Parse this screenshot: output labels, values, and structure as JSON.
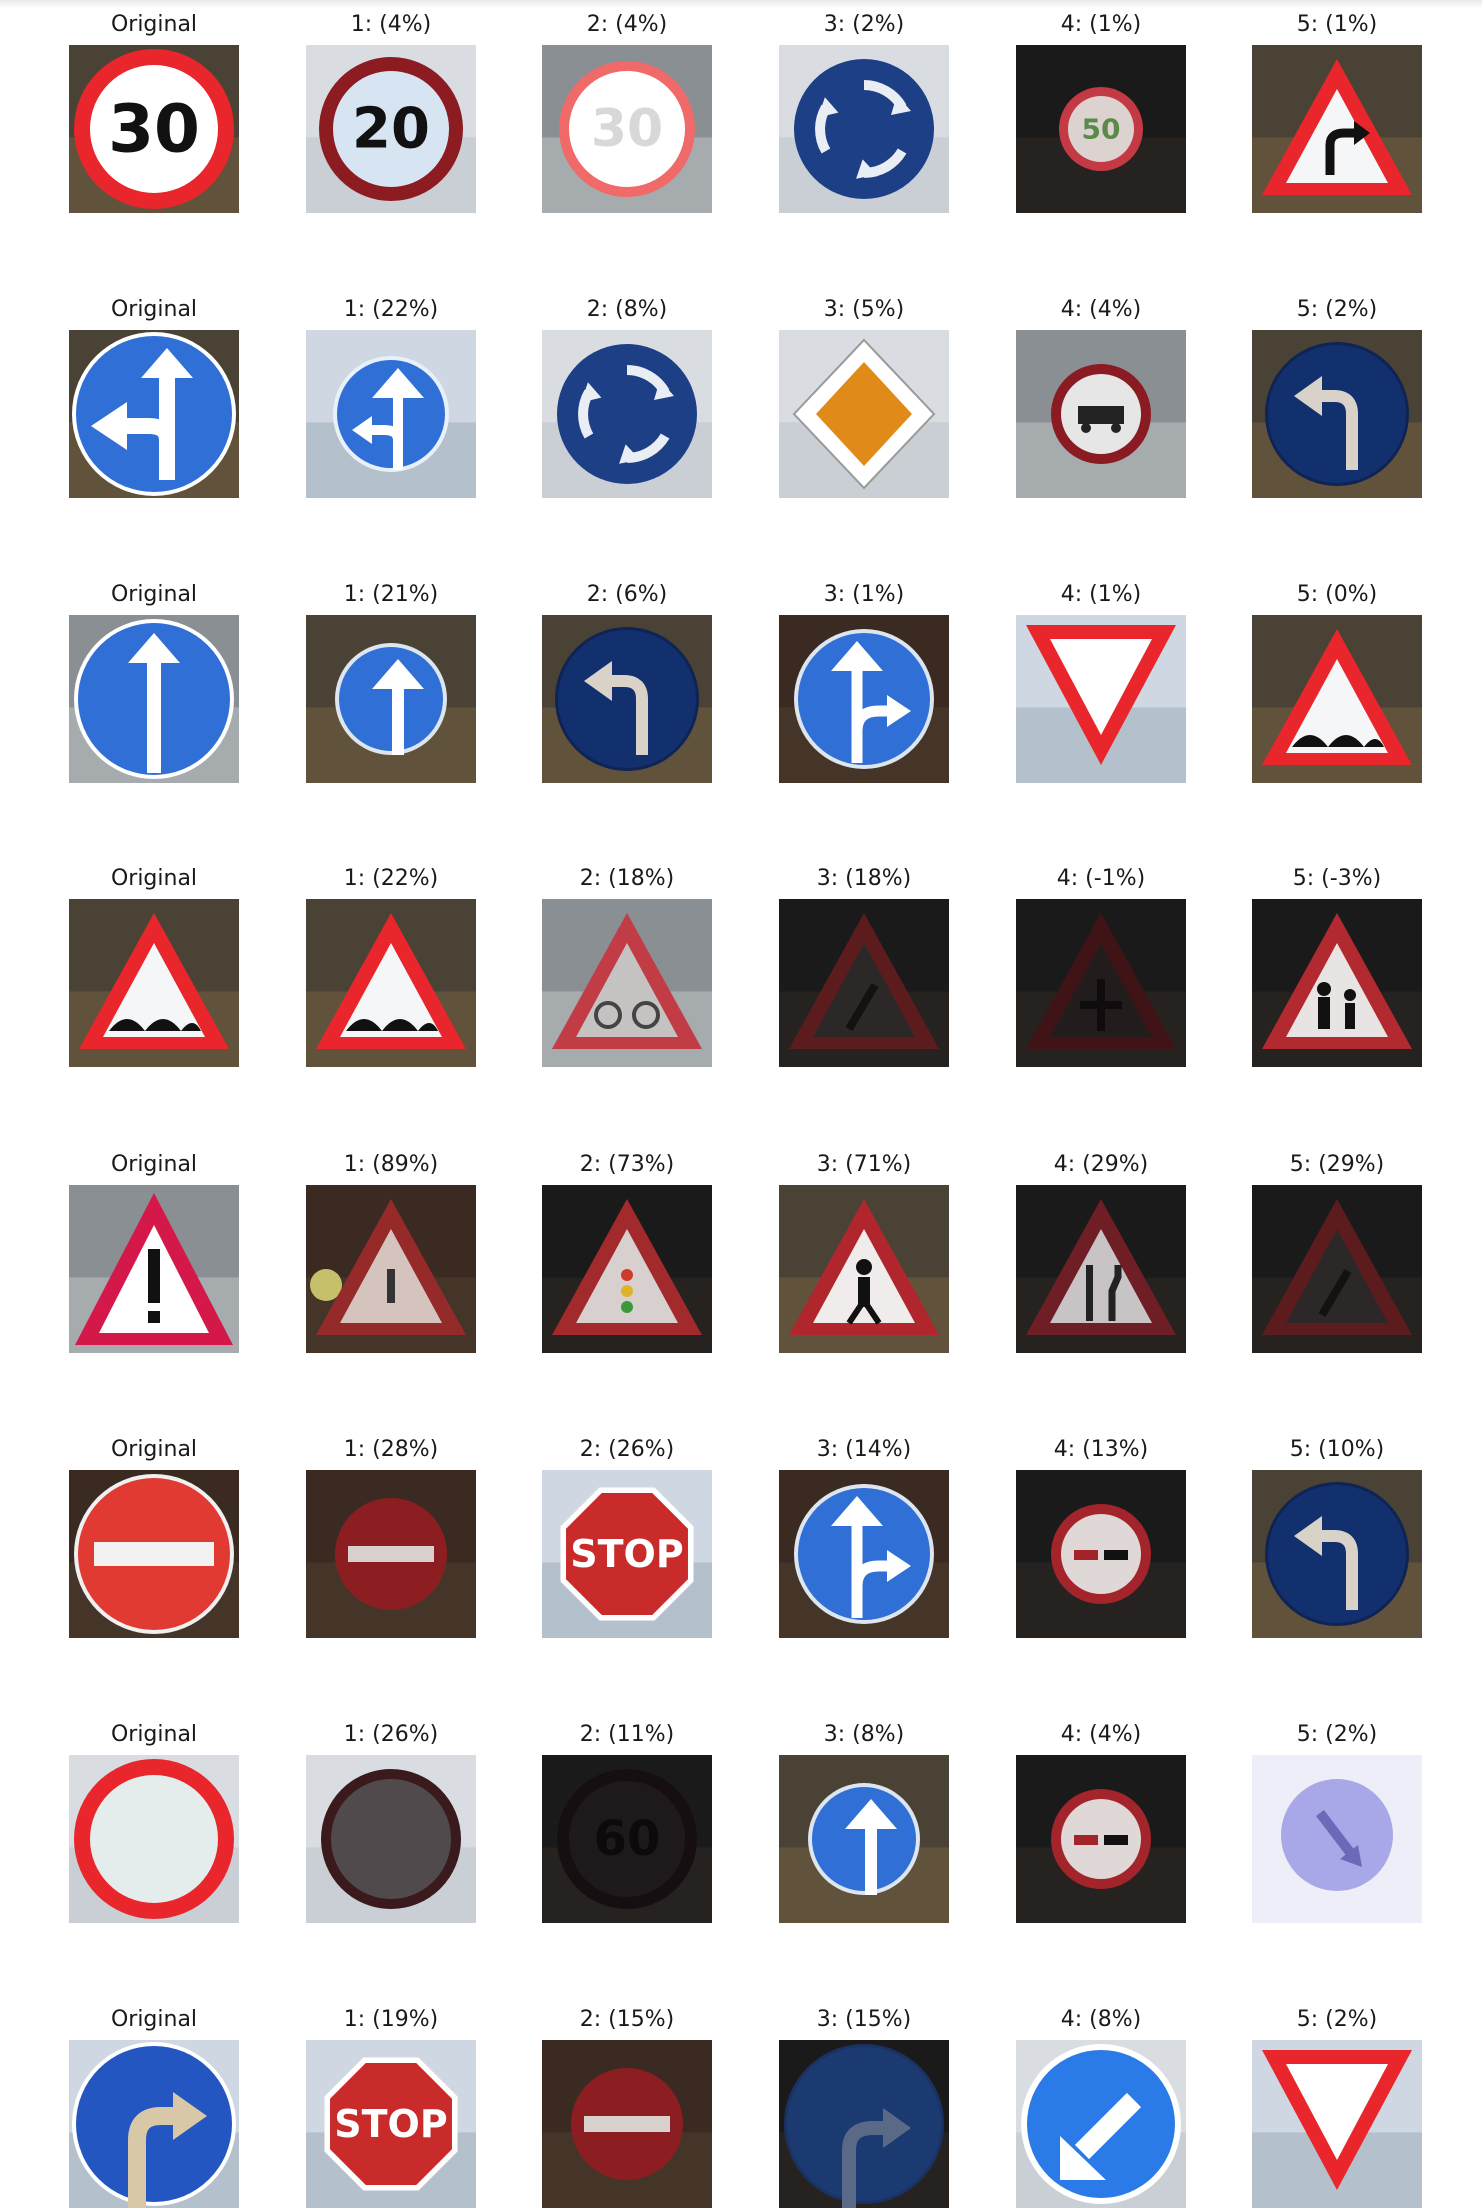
{
  "rows": [
    {
      "original": {
        "title": "Original",
        "sign": "speed-30-sign"
      },
      "predictions": [
        {
          "title": "1: (4%)",
          "sign": "speed-20-sign"
        },
        {
          "title": "2: (4%)",
          "sign": "speed-30-faded-sign"
        },
        {
          "title": "3: (2%)",
          "sign": "roundabout-sign"
        },
        {
          "title": "4: (1%)",
          "sign": "speed-50-dark-sign"
        },
        {
          "title": "5: (1%)",
          "sign": "curve-right-warning-sign"
        }
      ]
    },
    {
      "original": {
        "title": "Original",
        "sign": "straight-or-left-sign"
      },
      "predictions": [
        {
          "title": "1: (22%)",
          "sign": "straight-or-left-small-sign"
        },
        {
          "title": "2: (8%)",
          "sign": "roundabout-sign"
        },
        {
          "title": "3: (5%)",
          "sign": "priority-road-sign"
        },
        {
          "title": "4: (4%)",
          "sign": "no-trucks-sign"
        },
        {
          "title": "5: (2%)",
          "sign": "turn-left-sign"
        }
      ]
    },
    {
      "original": {
        "title": "Original",
        "sign": "ahead-only-sign"
      },
      "predictions": [
        {
          "title": "1: (21%)",
          "sign": "ahead-only-small-sign"
        },
        {
          "title": "2: (6%)",
          "sign": "turn-left-sign"
        },
        {
          "title": "3: (1%)",
          "sign": "straight-or-right-sign"
        },
        {
          "title": "4: (1%)",
          "sign": "yield-sign"
        },
        {
          "title": "5: (0%)",
          "sign": "bumpy-road-warning-sign"
        }
      ]
    },
    {
      "original": {
        "title": "Original",
        "sign": "bumpy-road-warning-sign"
      },
      "predictions": [
        {
          "title": "1: (22%)",
          "sign": "bumpy-road-warning-sign"
        },
        {
          "title": "2: (18%)",
          "sign": "bicycles-warning-sign"
        },
        {
          "title": "3: (18%)",
          "sign": "road-work-dark-sign"
        },
        {
          "title": "4: (-1%)",
          "sign": "crossroads-dark-sign"
        },
        {
          "title": "5: (-3%)",
          "sign": "children-crossing-sign"
        }
      ]
    },
    {
      "original": {
        "title": "Original",
        "sign": "general-caution-sign"
      },
      "predictions": [
        {
          "title": "1: (89%)",
          "sign": "general-caution-small-sign"
        },
        {
          "title": "2: (73%)",
          "sign": "traffic-signals-warning-sign"
        },
        {
          "title": "3: (71%)",
          "sign": "pedestrians-warning-sign"
        },
        {
          "title": "4: (29%)",
          "sign": "road-narrows-warning-sign"
        },
        {
          "title": "5: (29%)",
          "sign": "road-work-dark-sign"
        }
      ]
    },
    {
      "original": {
        "title": "Original",
        "sign": "no-entry-sign"
      },
      "predictions": [
        {
          "title": "1: (28%)",
          "sign": "no-entry-dark-sign"
        },
        {
          "title": "2: (26%)",
          "sign": "stop-sign"
        },
        {
          "title": "3: (14%)",
          "sign": "straight-or-right-sign"
        },
        {
          "title": "4: (13%)",
          "sign": "no-passing-sign"
        },
        {
          "title": "5: (10%)",
          "sign": "turn-left-sign"
        }
      ]
    },
    {
      "original": {
        "title": "Original",
        "sign": "no-vehicles-sign"
      },
      "predictions": [
        {
          "title": "1: (26%)",
          "sign": "no-vehicles-dark-sign"
        },
        {
          "title": "2: (11%)",
          "sign": "speed-60-dark-sign"
        },
        {
          "title": "3: (8%)",
          "sign": "ahead-only-small-sign"
        },
        {
          "title": "4: (4%)",
          "sign": "no-passing-sign"
        },
        {
          "title": "5: (2%)",
          "sign": "keep-right-faded-sign"
        }
      ]
    },
    {
      "original": {
        "title": "Original",
        "sign": "turn-right-ahead-sign"
      },
      "predictions": [
        {
          "title": "1: (19%)",
          "sign": "stop-sign"
        },
        {
          "title": "2: (15%)",
          "sign": "no-entry-dark-sign"
        },
        {
          "title": "3: (15%)",
          "sign": "turn-right-dark-sign"
        },
        {
          "title": "4: (8%)",
          "sign": "keep-left-sign"
        },
        {
          "title": "5: (2%)",
          "sign": "yield-sign"
        }
      ]
    }
  ],
  "sign_text": {
    "speed-30-sign": "30",
    "speed-20-sign": "20",
    "speed-30-faded-sign": "30",
    "speed-50-dark-sign": "50",
    "speed-60-dark-sign": "60",
    "stop-sign": "STOP"
  },
  "colors": {
    "sign_red": "#e8262b",
    "sign_blue": "#2f6fd6",
    "sign_dark_blue": "#12306e",
    "sign_white": "#f4f6f8",
    "title_text": "#1a1a1a"
  }
}
